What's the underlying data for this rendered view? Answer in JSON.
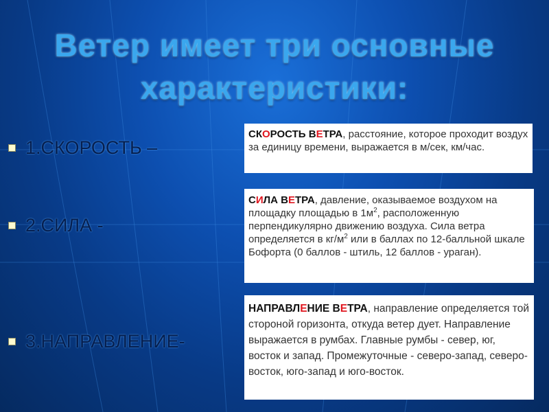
{
  "slide": {
    "title_line1": "Ветер имеет три основные",
    "title_line2": "характеристики:",
    "bullets": [
      "1.СКОРОСТЬ –",
      "2.СИЛА -",
      "3.НАПРАВЛЕНИЕ-"
    ],
    "boxes": [
      {
        "h": [
          "СК",
          "О",
          "РОСТЬ В",
          "Е",
          "ТРА"
        ],
        "parts": [
          ", расстояние, которое проходит воздух за единицу времени, выражается в м/сек, км/час."
        ]
      },
      {
        "h": [
          "С",
          "И",
          "ЛА В",
          "Е",
          "ТРА"
        ],
        "parts": [
          ", давление, оказываемое воздухом на площадку площадью в 1м",
          "2",
          ", расположенную перпендикулярно движению воздуха. Сила ветра определяется в кг/м",
          "2",
          " или в баллах по 12-балльной шкале Бофорта (0 баллов - штиль, 12 баллов - ураган)."
        ]
      },
      {
        "h": [
          "НАПРАВЛ",
          "Е",
          "НИЕ В",
          "Е",
          "ТРА"
        ],
        "parts": [
          ", направление определяется той стороной горизонта, откуда ветер дует. Направление выражается в румбах. Главные румбы - север, юг, восток и запад. Промежуточные - северо-запад, северо-восток, юго-запад и юго-восток."
        ]
      }
    ]
  },
  "colors": {
    "highlight": "#e0161f",
    "title": "#3aa7ee",
    "background": "#0d4fb0"
  }
}
